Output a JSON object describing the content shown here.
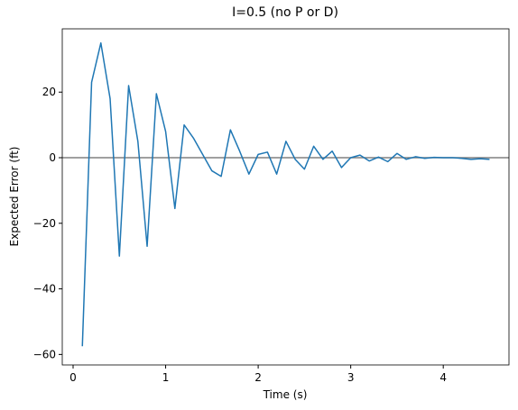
{
  "chart_data": {
    "type": "line",
    "title": "I=0.5 (no P or D)",
    "x_label": "Time (s)",
    "y_label": "Expected Error (ft)",
    "x": [
      0.1,
      0.2,
      0.3,
      0.4,
      0.5,
      0.6,
      0.7,
      0.8,
      0.9,
      1.0,
      1.1,
      1.2,
      1.3,
      1.4,
      1.5,
      1.6,
      1.7,
      1.8,
      1.9,
      2.0,
      2.1,
      2.2,
      2.3,
      2.4,
      2.5,
      2.6,
      2.7,
      2.8,
      2.9,
      3.0,
      3.1,
      3.2,
      3.3,
      3.4,
      3.5,
      3.6,
      3.7,
      3.8,
      3.9,
      4.0,
      4.1,
      4.2,
      4.3,
      4.4,
      4.5
    ],
    "series": [
      {
        "color": "#1f77b4",
        "values": [
          -57.5,
          23,
          35,
          18,
          -30,
          22,
          5,
          -27,
          19.5,
          8,
          -15.5,
          10,
          6,
          1,
          -4,
          -5.7,
          8.5,
          2,
          -5,
          1,
          1.7,
          -5,
          5,
          -0.5,
          -3.5,
          3.5,
          -0.5,
          2,
          -3,
          0,
          0.8,
          -1,
          0.2,
          -1.2,
          1.3,
          -0.5,
          0.3,
          -0.2,
          0.1,
          0,
          0,
          -0.2,
          -0.5,
          -0.3,
          -0.5
        ]
      }
    ],
    "hline": {
      "value": 0,
      "color": "#808080"
    },
    "xlim": [
      -0.117,
      4.71
    ],
    "ylim": [
      -63.2,
      39.3
    ],
    "xticks": [
      0,
      1,
      2,
      3,
      4
    ],
    "yticks": [
      {
        "value": -60,
        "label": "−60"
      },
      {
        "value": -40,
        "label": "−40"
      },
      {
        "value": -20,
        "label": "−20"
      },
      0,
      20
    ]
  }
}
